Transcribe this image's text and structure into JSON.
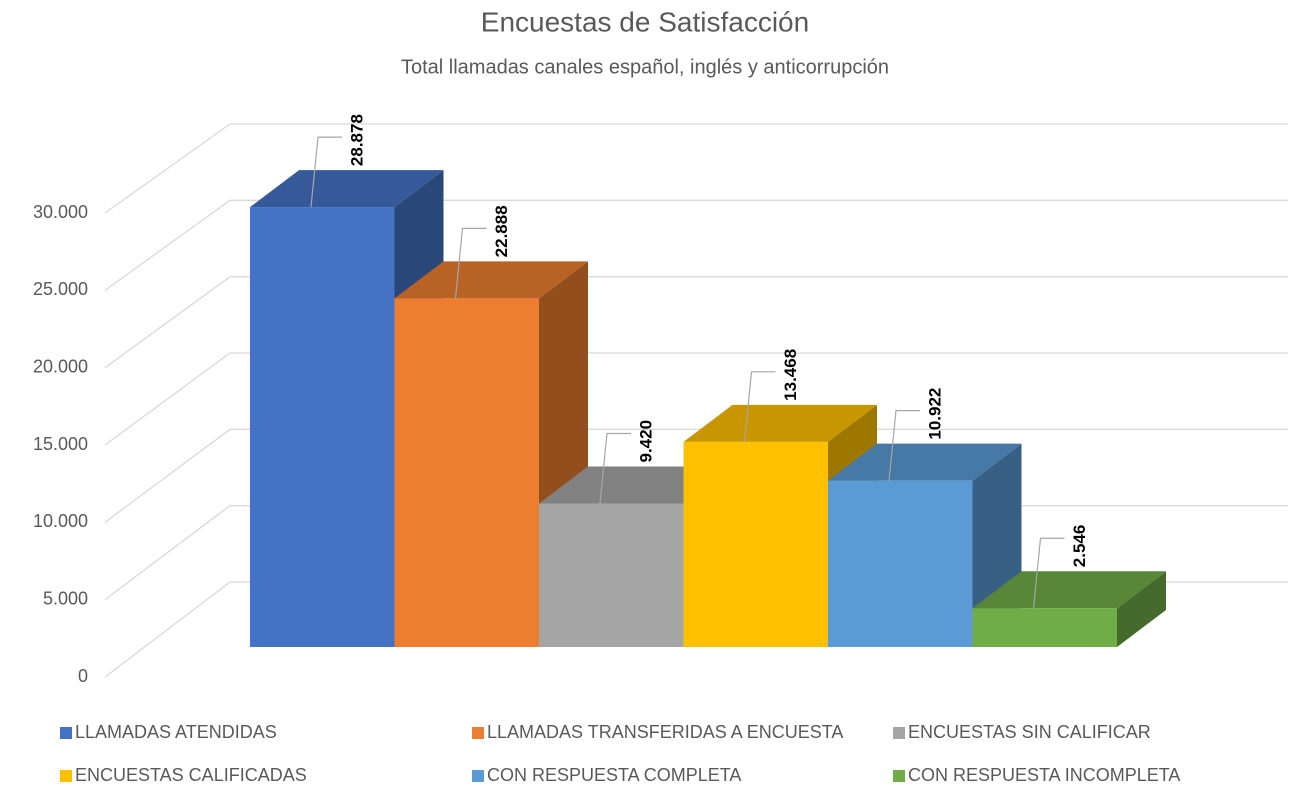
{
  "chart_data": {
    "type": "bar",
    "title": "Encuestas de Satisfacción",
    "subtitle": "Total llamadas canales español, inglés y anticorrupción",
    "ylim": [
      0,
      30000
    ],
    "yticks": [
      0,
      {
        "value": 5000,
        "label": "5.000"
      },
      {
        "value": 10000,
        "label": "10.000"
      },
      {
        "value": 15000,
        "label": "15.000"
      },
      {
        "value": 20000,
        "label": "20.000"
      },
      {
        "value": 25000,
        "label": "25.000"
      },
      {
        "value": 30000,
        "label": "30.000"
      }
    ],
    "grid": true,
    "legend": "bottom",
    "series": [
      {
        "name": "LLAMADAS ATENDIDAS",
        "color": "#4472c4",
        "values": [
          28878
        ],
        "value_labels": [
          "28.878"
        ]
      },
      {
        "name": "LLAMADAS TRANSFERIDAS A ENCUESTA",
        "color": "#ed7d31",
        "values": [
          22888
        ],
        "value_labels": [
          "22.888"
        ]
      },
      {
        "name": "ENCUESTAS SIN CALIFICAR",
        "color": "#a5a5a5",
        "values": [
          9420
        ],
        "value_labels": [
          "9.420"
        ]
      },
      {
        "name": "ENCUESTAS CALIFICADAS",
        "color": "#ffc000",
        "values": [
          13468
        ],
        "value_labels": [
          "13.468"
        ]
      },
      {
        "name": "CON RESPUESTA COMPLETA",
        "color": "#5b9bd5",
        "values": [
          10922
        ],
        "value_labels": [
          "10.922"
        ]
      },
      {
        "name": "CON RESPUESTA INCOMPLETA",
        "color": "#70ad47",
        "values": [
          2546
        ],
        "value_labels": [
          "2.546"
        ]
      }
    ]
  }
}
